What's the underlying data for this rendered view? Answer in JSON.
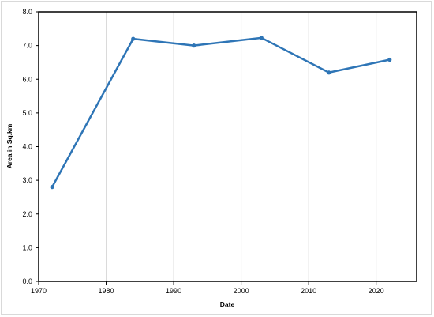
{
  "chart_data": {
    "type": "line",
    "title": "",
    "xlabel": "Date",
    "ylabel": "Area in Sq.km",
    "xlim": [
      1970,
      2026
    ],
    "ylim": [
      0,
      8
    ],
    "xticks": [
      1970,
      1980,
      1990,
      2000,
      2010,
      2020
    ],
    "yticks": [
      0,
      1,
      2,
      3,
      4,
      5,
      6,
      7,
      8
    ],
    "x_tick_labels": [
      "1970",
      "1980",
      "1990",
      "2000",
      "2010",
      "2020"
    ],
    "y_tick_labels": [
      "0.0",
      "1.0",
      "2.0",
      "3.0",
      "4.0",
      "5.0",
      "6.0",
      "7.0",
      "8.0"
    ],
    "grid": "vertical",
    "legend": "none",
    "series": [
      {
        "color": "#2e75b6",
        "x": [
          1972,
          1984,
          1993,
          2003,
          2013,
          2022
        ],
        "y": [
          2.8,
          7.2,
          7.0,
          7.23,
          6.2,
          6.58
        ]
      }
    ]
  }
}
